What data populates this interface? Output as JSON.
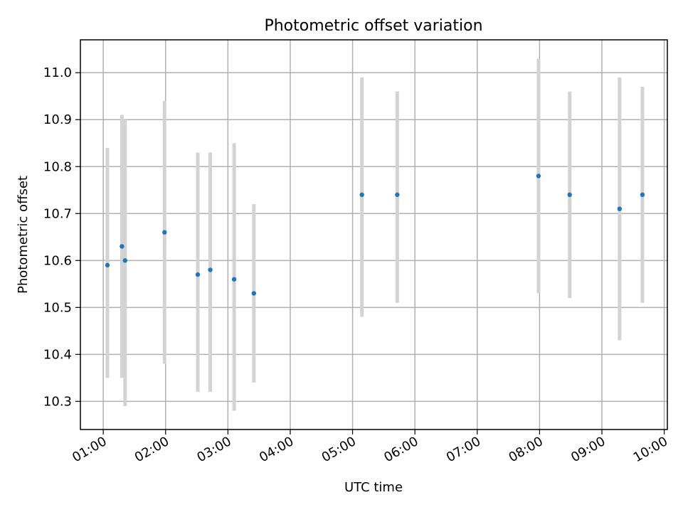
{
  "chart_data": {
    "type": "scatter",
    "title": "Photometric offset variation",
    "xlabel": "UTC time",
    "ylabel": "Photometric offset",
    "x_ticks": [
      "01:00",
      "02:00",
      "03:00",
      "04:00",
      "05:00",
      "06:00",
      "07:00",
      "08:00",
      "09:00",
      "10:00"
    ],
    "y_ticks": [
      "10.3",
      "10.4",
      "10.5",
      "10.6",
      "10.7",
      "10.8",
      "10.9",
      "11.0"
    ],
    "xlim": [
      "00:38",
      "10:03"
    ],
    "ylim": [
      10.24,
      11.07
    ],
    "grid": true,
    "points": [
      {
        "time": "01:04",
        "y": 10.59,
        "yerr_low": 10.35,
        "yerr_high": 10.84
      },
      {
        "time": "01:18",
        "y": 10.63,
        "yerr_low": 10.35,
        "yerr_high": 10.91
      },
      {
        "time": "01:21",
        "y": 10.6,
        "yerr_low": 10.29,
        "yerr_high": 10.9
      },
      {
        "time": "01:59",
        "y": 10.66,
        "yerr_low": 10.38,
        "yerr_high": 10.94
      },
      {
        "time": "02:31",
        "y": 10.57,
        "yerr_low": 10.32,
        "yerr_high": 10.83
      },
      {
        "time": "02:43",
        "y": 10.58,
        "yerr_low": 10.32,
        "yerr_high": 10.83
      },
      {
        "time": "03:06",
        "y": 10.56,
        "yerr_low": 10.28,
        "yerr_high": 10.85
      },
      {
        "time": "03:25",
        "y": 10.53,
        "yerr_low": 10.34,
        "yerr_high": 10.72
      },
      {
        "time": "05:09",
        "y": 10.74,
        "yerr_low": 10.48,
        "yerr_high": 10.99
      },
      {
        "time": "05:43",
        "y": 10.74,
        "yerr_low": 10.51,
        "yerr_high": 10.96
      },
      {
        "time": "07:59",
        "y": 10.78,
        "yerr_low": 10.53,
        "yerr_high": 11.03
      },
      {
        "time": "08:29",
        "y": 10.74,
        "yerr_low": 10.52,
        "yerr_high": 10.96
      },
      {
        "time": "09:17",
        "y": 10.71,
        "yerr_low": 10.43,
        "yerr_high": 10.99
      },
      {
        "time": "09:39",
        "y": 10.74,
        "yerr_low": 10.51,
        "yerr_high": 10.97
      }
    ],
    "colors": {
      "marker": "#1f77b4",
      "errorbar": "#d3d3d3"
    }
  }
}
